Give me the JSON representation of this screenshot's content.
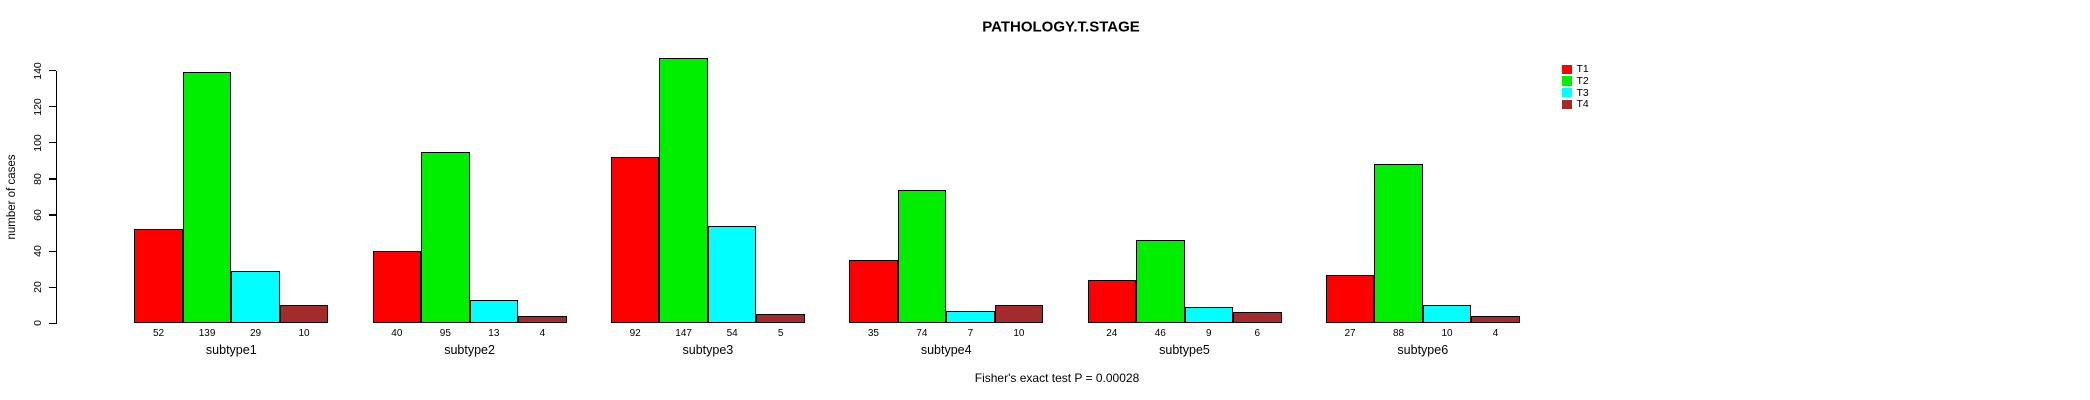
{
  "chart_data": {
    "type": "bar",
    "title": "PATHOLOGY.T.STAGE",
    "xlabel": "",
    "ylabel": "number of cases",
    "caption": "Fisher's exact test P = 0.00028",
    "categories": [
      "subtype1",
      "subtype2",
      "subtype3",
      "subtype4",
      "subtype5",
      "subtype6"
    ],
    "series": [
      {
        "name": "T1",
        "color": "#FF0000",
        "values": [
          52,
          40,
          92,
          35,
          24,
          27
        ]
      },
      {
        "name": "T2",
        "color": "#00EE00",
        "values": [
          139,
          95,
          147,
          74,
          46,
          88
        ]
      },
      {
        "name": "T3",
        "color": "#00FFFF",
        "values": [
          29,
          13,
          54,
          7,
          9,
          10
        ]
      },
      {
        "name": "T4",
        "color": "#A52A2A",
        "values": [
          10,
          4,
          5,
          10,
          6,
          4
        ]
      }
    ],
    "bar_value_labels_shown": true,
    "ylim": [
      0,
      140
    ],
    "yticks": [
      0,
      20,
      40,
      60,
      80,
      100,
      120,
      140
    ],
    "legend_position": "right",
    "legend_entries": [
      "T1",
      "T2",
      "T3",
      "T4"
    ],
    "grid": false,
    "background": "#FFFFFF",
    "axis_color": "#000000"
  }
}
